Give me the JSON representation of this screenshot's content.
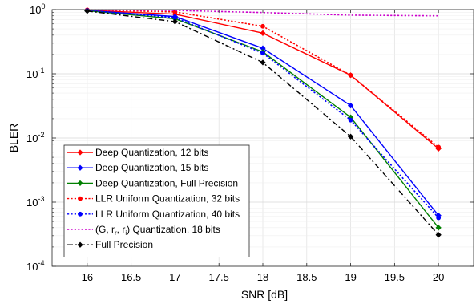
{
  "chart_data": {
    "type": "line",
    "xlabel": "SNR [dB]",
    "ylabel": "BLER",
    "yscale": "log",
    "xlim": [
      15.6,
      20.4
    ],
    "ylim": [
      0.0001,
      1
    ],
    "x_ticks": [
      "16",
      "16.5",
      "17",
      "17.5",
      "18",
      "18.5",
      "19",
      "19.5",
      "20"
    ],
    "y_ticks": [
      {
        "base": "10",
        "exp": "0"
      },
      {
        "base": "10",
        "exp": "-1"
      },
      {
        "base": "10",
        "exp": "-2"
      },
      {
        "base": "10",
        "exp": "-3"
      },
      {
        "base": "10",
        "exp": "-4"
      }
    ],
    "grid": true,
    "legend_position": "bottom-left",
    "x": [
      16,
      17,
      18,
      19,
      20
    ],
    "series": [
      {
        "name": "Deep Quantization, 12 bits",
        "values": [
          0.98,
          0.85,
          0.43,
          0.095,
          0.0068
        ],
        "color": "#ff0000",
        "dash": "solid",
        "marker": "diamond"
      },
      {
        "name": "Deep Quantization, 15 bits",
        "values": [
          0.97,
          0.78,
          0.25,
          0.032,
          0.00062
        ],
        "color": "#0000ff",
        "dash": "solid",
        "marker": "diamond"
      },
      {
        "name": "Deep Quantization, Full Precision",
        "values": [
          0.96,
          0.72,
          0.22,
          0.021,
          0.0004
        ],
        "color": "#008000",
        "dash": "solid",
        "marker": "diamond"
      },
      {
        "name": "LLR Uniform Quantization, 32 bits",
        "values": [
          0.99,
          0.92,
          0.55,
          0.095,
          0.0072
        ],
        "color": "#ff0000",
        "dash": "dotted",
        "marker": "circle"
      },
      {
        "name": "LLR Uniform Quantization, 40 bits",
        "values": [
          0.97,
          0.75,
          0.21,
          0.019,
          0.00057
        ],
        "color": "#0000ff",
        "dash": "dotted",
        "marker": "circle"
      },
      {
        "name_parts": [
          "(G, r",
          "r",
          ", r",
          "i",
          ") Quantization, 18 bits"
        ],
        "values": [
          0.99,
          0.97,
          0.9,
          0.82,
          0.8
        ],
        "color": "#cc00cc",
        "dash": "dotted",
        "marker": "none"
      },
      {
        "name": "Full Precision",
        "values": [
          0.95,
          0.65,
          0.15,
          0.0105,
          0.00031
        ],
        "color": "#000000",
        "dash": "dashdot",
        "marker": "diamond"
      }
    ]
  }
}
